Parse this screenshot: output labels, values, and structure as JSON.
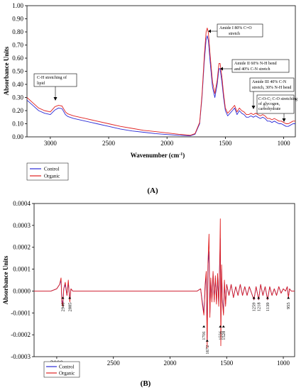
{
  "colors": {
    "control": "#2b2bd6",
    "organic": "#e02020"
  },
  "chart_data": [
    {
      "panel": "(A)",
      "type": "line",
      "xlabel": "Wavenumber (cm⁻¹)",
      "ylabel": "Absorbance Units",
      "xlim": [
        3200,
        900
      ],
      "ylim": [
        0.0,
        1.0
      ],
      "x_ticks": [
        3000,
        2500,
        2000,
        1500,
        1000
      ],
      "y_ticks": [
        0.0,
        0.1,
        0.2,
        0.3,
        0.4,
        0.5,
        0.6,
        0.7,
        0.8,
        0.9,
        1.0
      ],
      "series": [
        {
          "name": "Control",
          "color": "#2b2bd6",
          "x": [
            3200,
            3150,
            3100,
            3050,
            3000,
            2960,
            2930,
            2900,
            2870,
            2850,
            2800,
            2700,
            2600,
            2500,
            2400,
            2300,
            2200,
            2100,
            2000,
            1900,
            1800,
            1760,
            1720,
            1700,
            1680,
            1665,
            1655,
            1645,
            1630,
            1610,
            1590,
            1570,
            1555,
            1545,
            1530,
            1515,
            1500,
            1480,
            1460,
            1440,
            1420,
            1400,
            1380,
            1360,
            1340,
            1320,
            1300,
            1280,
            1260,
            1240,
            1220,
            1200,
            1180,
            1160,
            1140,
            1120,
            1100,
            1080,
            1060,
            1040,
            1020,
            1000,
            980,
            960,
            940,
            920,
            900
          ],
          "y": [
            0.28,
            0.24,
            0.2,
            0.18,
            0.17,
            0.205,
            0.22,
            0.215,
            0.17,
            0.155,
            0.14,
            0.12,
            0.1,
            0.08,
            0.06,
            0.045,
            0.035,
            0.025,
            0.018,
            0.012,
            0.008,
            0.02,
            0.1,
            0.3,
            0.58,
            0.74,
            0.77,
            0.73,
            0.57,
            0.38,
            0.3,
            0.4,
            0.52,
            0.52,
            0.42,
            0.3,
            0.2,
            0.16,
            0.18,
            0.2,
            0.22,
            0.17,
            0.2,
            0.18,
            0.17,
            0.15,
            0.15,
            0.16,
            0.15,
            0.16,
            0.15,
            0.14,
            0.15,
            0.14,
            0.12,
            0.12,
            0.11,
            0.12,
            0.11,
            0.1,
            0.1,
            0.09,
            0.08,
            0.08,
            0.09,
            0.1,
            0.1
          ]
        },
        {
          "name": "Organic",
          "color": "#e02020",
          "x": [
            3200,
            3150,
            3100,
            3050,
            3000,
            2960,
            2930,
            2900,
            2870,
            2850,
            2800,
            2700,
            2600,
            2500,
            2400,
            2300,
            2200,
            2100,
            2000,
            1900,
            1800,
            1760,
            1720,
            1700,
            1680,
            1665,
            1655,
            1645,
            1630,
            1610,
            1590,
            1570,
            1555,
            1545,
            1530,
            1515,
            1500,
            1480,
            1460,
            1440,
            1420,
            1400,
            1380,
            1360,
            1340,
            1320,
            1300,
            1280,
            1260,
            1240,
            1220,
            1200,
            1180,
            1160,
            1140,
            1120,
            1100,
            1080,
            1060,
            1040,
            1020,
            1000,
            980,
            960,
            940,
            920,
            900
          ],
          "y": [
            0.3,
            0.26,
            0.22,
            0.2,
            0.19,
            0.23,
            0.24,
            0.235,
            0.19,
            0.175,
            0.16,
            0.14,
            0.12,
            0.1,
            0.08,
            0.065,
            0.05,
            0.04,
            0.03,
            0.02,
            0.012,
            0.025,
            0.11,
            0.32,
            0.62,
            0.8,
            0.83,
            0.79,
            0.62,
            0.42,
            0.33,
            0.43,
            0.56,
            0.56,
            0.46,
            0.33,
            0.22,
            0.18,
            0.2,
            0.22,
            0.24,
            0.19,
            0.22,
            0.2,
            0.19,
            0.17,
            0.17,
            0.18,
            0.17,
            0.18,
            0.17,
            0.16,
            0.17,
            0.16,
            0.14,
            0.14,
            0.13,
            0.14,
            0.13,
            0.12,
            0.12,
            0.11,
            0.1,
            0.1,
            0.11,
            0.12,
            0.12
          ]
        }
      ],
      "annotations": [
        {
          "label": "C-H stretching of lipid"
        },
        {
          "label": "Amide I 80% C=O stretch"
        },
        {
          "label": "Amide II 60% N-H bend and 40% C-N stretch"
        },
        {
          "label": "Amide III 40% C-N stretch, 30% N-H bend"
        },
        {
          "label": "C-O-C; C-O stretching of glycogen, carbohydrate"
        }
      ]
    },
    {
      "panel": "(B)",
      "type": "line",
      "xlabel": "",
      "ylabel": "Absorbance Units",
      "xlim": [
        3200,
        900
      ],
      "ylim": [
        -0.0003,
        0.0004
      ],
      "x_ticks": [
        3000,
        2500,
        2000,
        1500,
        1000
      ],
      "y_ticks": [
        -0.0003,
        -0.0002,
        -0.0001,
        0.0,
        0.0001,
        0.0002,
        0.0003,
        0.0004
      ],
      "y_tick_labels": [
        "-0.0003",
        "-0.0002",
        "-0.0001",
        "0.0000",
        "0.0001",
        "0.0002",
        "0.0003",
        "0.0004"
      ],
      "series": [
        {
          "name": "Control",
          "color": "#2b2bd6",
          "x": [
            3200,
            3050,
            3000,
            2975,
            2962,
            2955,
            2946,
            2938,
            2925,
            2910,
            2898,
            2885,
            2875,
            2860,
            2800,
            2700,
            2500,
            2300,
            2100,
            1900,
            1760,
            1730,
            1715,
            1701,
            1690,
            1680,
            1672,
            1665,
            1656,
            1648,
            1640,
            1630,
            1620,
            1610,
            1600,
            1590,
            1580,
            1570,
            1560,
            1556,
            1552,
            1545,
            1538,
            1528,
            1520,
            1510,
            1500,
            1480,
            1460,
            1440,
            1420,
            1400,
            1380,
            1360,
            1340,
            1320,
            1300,
            1280,
            1259,
            1240,
            1218,
            1200,
            1180,
            1160,
            1139,
            1120,
            1100,
            1080,
            1060,
            1040,
            1020,
            1000,
            980,
            965,
            955,
            945,
            930,
            900
          ],
          "y": [
            0,
            0,
            1e-05,
            3e-05,
            5e-05,
            -4e-05,
            -6e-05,
            1e-05,
            3e-05,
            -2e-05,
            4e-05,
            -4e-05,
            1e-05,
            0,
            0,
            0,
            0,
            0,
            0,
            0,
            0,
            1e-05,
            -5e-05,
            -0.0001,
            2e-05,
            8e-05,
            -0.00022,
            0.00012,
            0.00018,
            -0.0001,
            5e-05,
            -4e-05,
            8e-05,
            -4e-05,
            6e-05,
            -5e-05,
            7e-05,
            -6e-05,
            0.00016,
            0.00024,
            -0.00016,
            0.0001,
            -4e-05,
            -0.0001,
            4e-05,
            -6e-05,
            3e-05,
            -2e-05,
            3e-05,
            -3e-05,
            2e-05,
            -2e-05,
            3e-05,
            -2e-05,
            2e-05,
            -2e-05,
            2e-05,
            -1e-05,
            -4e-05,
            2e-05,
            -4e-05,
            3e-05,
            -2e-05,
            2e-05,
            -4e-05,
            2e-05,
            -2e-05,
            1e-05,
            -2e-05,
            2e-05,
            -1e-05,
            1e-05,
            0,
            2e-05,
            -3e-05,
            1e-05,
            0,
            0
          ]
        },
        {
          "name": "Organic",
          "color": "#e02020",
          "x": [
            3200,
            3050,
            3000,
            2975,
            2962,
            2955,
            2946,
            2938,
            2925,
            2910,
            2898,
            2885,
            2875,
            2860,
            2800,
            2700,
            2500,
            2300,
            2100,
            1900,
            1760,
            1730,
            1715,
            1701,
            1690,
            1680,
            1672,
            1665,
            1656,
            1648,
            1640,
            1630,
            1620,
            1610,
            1600,
            1590,
            1580,
            1570,
            1560,
            1556,
            1552,
            1545,
            1538,
            1528,
            1520,
            1510,
            1500,
            1480,
            1460,
            1440,
            1420,
            1400,
            1380,
            1360,
            1340,
            1320,
            1300,
            1280,
            1259,
            1240,
            1218,
            1200,
            1180,
            1160,
            1139,
            1120,
            1100,
            1080,
            1060,
            1040,
            1020,
            1000,
            980,
            965,
            955,
            945,
            930,
            900
          ],
          "y": [
            0,
            0,
            1e-05,
            3e-05,
            6e-05,
            -5e-05,
            -7e-05,
            1e-05,
            4e-05,
            -2e-05,
            5e-05,
            -5e-05,
            1e-05,
            0,
            0,
            0,
            0,
            0,
            0,
            0,
            0,
            1e-05,
            -6e-05,
            -0.00011,
            3e-05,
            9e-05,
            -0.00026,
            0.00013,
            0.00026,
            -0.00012,
            6e-05,
            -5e-05,
            9e-05,
            -5e-05,
            7e-05,
            -6e-05,
            8e-05,
            -7e-05,
            0.00018,
            0.00033,
            -0.00025,
            0.00012,
            -5e-05,
            -0.00011,
            5e-05,
            -7e-05,
            3e-05,
            -2e-05,
            3e-05,
            -3e-05,
            2e-05,
            -2e-05,
            3e-05,
            -2e-05,
            2e-05,
            -2e-05,
            2e-05,
            -1e-05,
            -4e-05,
            2e-05,
            -4e-05,
            3e-05,
            -2e-05,
            2e-05,
            -4e-05,
            2e-05,
            -2e-05,
            1e-05,
            -2e-05,
            2e-05,
            -1e-05,
            1e-05,
            0,
            2e-05,
            -3e-05,
            1e-05,
            0,
            0
          ]
        }
      ],
      "peak_labels": [
        "2946",
        "2885",
        "1701",
        "1672",
        "1556",
        "1528",
        "1259",
        "1218",
        "1139",
        "955"
      ]
    }
  ],
  "legend": {
    "control": "Control",
    "organic": "Organic"
  },
  "panel_labels": {
    "a": "(A)",
    "b": "(B)"
  },
  "axis": {
    "a_ylabel": "Absorbance Units",
    "a_xlabel": "Wavenumber (cm",
    "a_xlabel_sup": "-1",
    "a_xlabel_end": ")",
    "b_ylabel": "Absorbance Units"
  },
  "ticks": {
    "a_y": [
      "0.00",
      "0.10",
      "0.20",
      "0.30",
      "0.40",
      "0.50",
      "0.60",
      "0.70",
      "0.80",
      "0.90",
      "1.00"
    ],
    "b_y": [
      "-0.0003",
      "-0.0002",
      "-0.0001",
      "0.0000",
      "0.0001",
      "0.0002",
      "0.0003",
      "0.0004"
    ],
    "x": [
      "3000",
      "2500",
      "2000",
      "1500",
      "1000"
    ]
  },
  "annotations_a": {
    "ch_line1": "C-H stretching of",
    "ch_line2": "lipid",
    "amide1_line1": "Amide I 80% C=O",
    "amide1_line2": "stretch",
    "amide2_line1": "Amide II 60% N-H bend",
    "amide2_line2": "and 40% C-N stretch",
    "amide3_line1": "Amide III 40% C-N",
    "amide3_line2": "stretch, 30% N-H bend",
    "coc_line1": "C-O-C; C-O stretching",
    "coc_line2": "of glycogen,",
    "coc_line3": "carbohydrate"
  }
}
